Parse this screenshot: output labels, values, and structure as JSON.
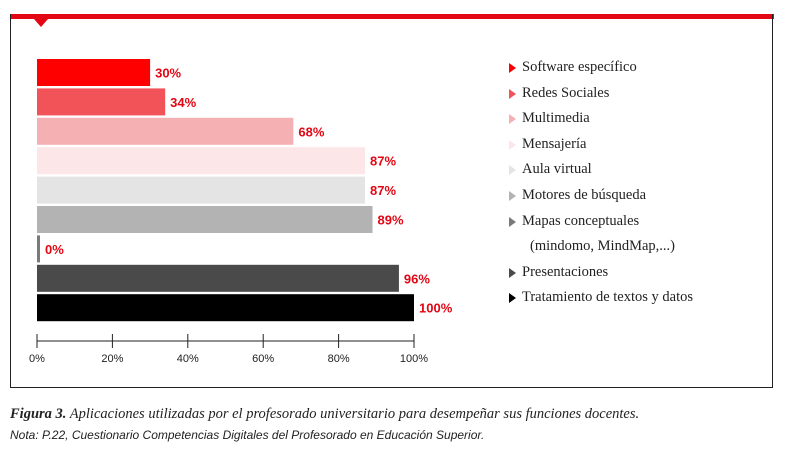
{
  "chart_data": {
    "type": "bar",
    "orientation": "horizontal",
    "categories": [
      "Software específico",
      "Redes Sociales",
      "Multimedia",
      "Mensajería",
      "Aula virtual",
      "Motores de búsqueda",
      "Mapas conceptuales (mindomo, MindMap,...)",
      "Presentaciones",
      "Tratamiento de textos y datos"
    ],
    "values": [
      30,
      34,
      68,
      87,
      87,
      89,
      0,
      96,
      100
    ],
    "value_labels": [
      "30%",
      "34%",
      "68%",
      "87%",
      "87%",
      "89%",
      "0%",
      "96%",
      "100%"
    ],
    "colors": [
      "#ff0000",
      "#f25359",
      "#f5b0b3",
      "#fde6e7",
      "#e4e4e4",
      "#b3b3b3",
      "#7a7a7a",
      "#4a4a4a",
      "#000000"
    ],
    "xlim": [
      0,
      100
    ],
    "xticks": [
      "0%",
      "20%",
      "40%",
      "60%",
      "80%",
      "100%"
    ],
    "grid": false,
    "legend_position": "right"
  },
  "legend": {
    "items": [
      {
        "label": "Software específico",
        "color": "#ff0000"
      },
      {
        "label": "Redes Sociales",
        "color": "#f25359"
      },
      {
        "label": "Multimedia",
        "color": "#f5b0b3"
      },
      {
        "label": "Mensajería",
        "color": "#fde6e7"
      },
      {
        "label": "Aula virtual",
        "color": "#e4e4e4"
      },
      {
        "label": "Motores de búsqueda",
        "color": "#b3b3b3"
      },
      {
        "label": "Mapas conceptuales",
        "color": "#7a7a7a",
        "continuation": "(mindomo, MindMap,...)"
      },
      {
        "label": "Presentaciones",
        "color": "#4a4a4a"
      },
      {
        "label": "Tratamiento de textos y datos",
        "color": "#000000"
      }
    ]
  },
  "caption": {
    "figure_number": "Figura 3.",
    "text": "Aplicaciones utilizadas por el profesorado universitario para desempeñar sus funciones docentes.",
    "note": "Nota: P.22, Cuestionario Competencias Digitales del Profesorado en Educación Superior."
  },
  "accent_color": "#e30613"
}
